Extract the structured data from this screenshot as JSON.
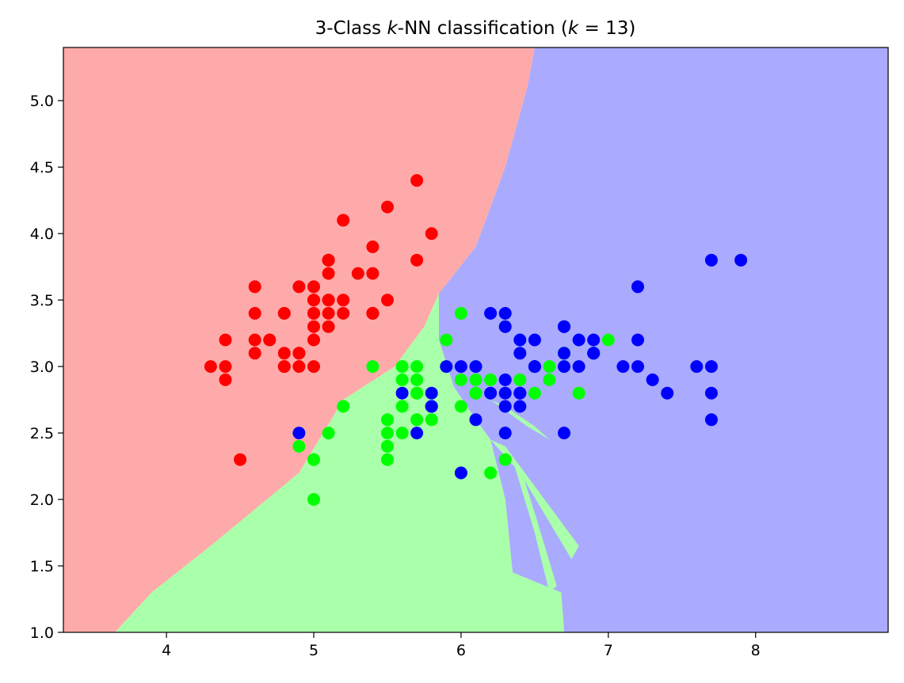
{
  "chart_data": {
    "type": "scatter",
    "title_parts": {
      "prefix": "3-Class ",
      "k1": "k",
      "mid": "-NN classification (",
      "k2": "k",
      "suffix": " = 13)"
    },
    "xlim": [
      3.3,
      8.9
    ],
    "ylim": [
      1.0,
      5.4
    ],
    "x_ticks": [
      4,
      5,
      6,
      7,
      8
    ],
    "x_tick_labels": [
      "4",
      "5",
      "6",
      "7",
      "8"
    ],
    "y_ticks": [
      1.0,
      1.5,
      2.0,
      2.5,
      3.0,
      3.5,
      4.0,
      4.5,
      5.0
    ],
    "y_tick_labels": [
      "1.0",
      "1.5",
      "2.0",
      "2.5",
      "3.0",
      "3.5",
      "4.0",
      "4.5",
      "5.0"
    ],
    "region_colors": {
      "red": "#ffaaaa",
      "green": "#aaffaa",
      "blue": "#aaaaff"
    },
    "point_colors": {
      "red": "#ff0000",
      "green": "#00ff00",
      "blue": "#0000ff"
    },
    "decision_regions": {
      "red": [
        [
          3.3,
          1.0
        ],
        [
          3.65,
          1.0
        ],
        [
          3.9,
          1.3
        ],
        [
          4.3,
          1.65
        ],
        [
          4.9,
          2.2
        ],
        [
          5.2,
          2.75
        ],
        [
          5.55,
          3.0
        ],
        [
          5.75,
          3.3
        ],
        [
          5.85,
          3.55
        ],
        [
          6.1,
          3.9
        ],
        [
          6.3,
          4.5
        ],
        [
          6.45,
          5.1
        ],
        [
          6.5,
          5.4
        ],
        [
          3.3,
          5.4
        ]
      ],
      "green": [
        [
          3.65,
          1.0
        ],
        [
          6.7,
          1.0
        ],
        [
          6.68,
          1.3
        ],
        [
          6.35,
          1.45
        ],
        [
          6.3,
          2.0
        ],
        [
          6.2,
          2.45
        ],
        [
          6.1,
          2.6
        ],
        [
          5.95,
          2.85
        ],
        [
          5.85,
          3.2
        ],
        [
          5.85,
          3.55
        ],
        [
          5.75,
          3.3
        ],
        [
          5.55,
          3.0
        ],
        [
          5.2,
          2.75
        ],
        [
          4.9,
          2.2
        ],
        [
          4.3,
          1.65
        ],
        [
          3.9,
          1.3
        ]
      ],
      "blue": [
        [
          6.7,
          1.0
        ],
        [
          8.9,
          1.0
        ],
        [
          8.9,
          5.4
        ],
        [
          6.5,
          5.4
        ],
        [
          6.45,
          5.1
        ],
        [
          6.3,
          4.5
        ],
        [
          6.1,
          3.9
        ],
        [
          5.85,
          3.55
        ],
        [
          5.85,
          3.2
        ],
        [
          5.95,
          2.85
        ],
        [
          6.1,
          2.6
        ],
        [
          6.2,
          2.45
        ],
        [
          6.3,
          2.0
        ],
        [
          6.35,
          1.45
        ],
        [
          6.68,
          1.3
        ]
      ],
      "green_islands": [
        [
          [
            6.2,
            2.75
          ],
          [
            6.45,
            2.55
          ],
          [
            6.6,
            2.45
          ],
          [
            6.5,
            2.55
          ],
          [
            6.3,
            2.7
          ]
        ],
        [
          [
            6.2,
            2.45
          ],
          [
            6.4,
            2.2
          ],
          [
            6.75,
            1.55
          ],
          [
            6.8,
            1.65
          ],
          [
            6.5,
            2.1
          ],
          [
            6.3,
            2.4
          ]
        ],
        [
          [
            6.35,
            2.3
          ],
          [
            6.5,
            1.75
          ],
          [
            6.6,
            1.3
          ],
          [
            6.65,
            1.35
          ],
          [
            6.5,
            1.9
          ],
          [
            6.4,
            2.25
          ]
        ]
      ]
    },
    "series": [
      {
        "color_key": "red",
        "points": [
          [
            5.1,
            3.5
          ],
          [
            4.9,
            3.0
          ],
          [
            4.7,
            3.2
          ],
          [
            4.6,
            3.1
          ],
          [
            5.0,
            3.6
          ],
          [
            5.4,
            3.4
          ],
          [
            4.6,
            3.4
          ],
          [
            5.0,
            3.4
          ],
          [
            4.4,
            2.9
          ],
          [
            4.9,
            3.1
          ],
          [
            5.4,
            3.7
          ],
          [
            4.8,
            3.4
          ],
          [
            4.8,
            3.0
          ],
          [
            4.3,
            3.0
          ],
          [
            5.8,
            4.0
          ],
          [
            5.7,
            4.4
          ],
          [
            5.4,
            3.9
          ],
          [
            5.1,
            3.5
          ],
          [
            5.7,
            3.8
          ],
          [
            5.1,
            3.8
          ],
          [
            5.4,
            3.4
          ],
          [
            5.1,
            3.7
          ],
          [
            4.6,
            3.6
          ],
          [
            5.1,
            3.3
          ],
          [
            4.8,
            3.4
          ],
          [
            5.0,
            3.0
          ],
          [
            5.0,
            3.4
          ],
          [
            5.2,
            3.5
          ],
          [
            5.2,
            3.4
          ],
          [
            4.7,
            3.2
          ],
          [
            4.8,
            3.1
          ],
          [
            5.4,
            3.4
          ],
          [
            5.2,
            4.1
          ],
          [
            5.5,
            4.2
          ],
          [
            4.9,
            3.1
          ],
          [
            5.0,
            3.2
          ],
          [
            5.5,
            3.5
          ],
          [
            4.9,
            3.6
          ],
          [
            4.4,
            3.0
          ],
          [
            5.1,
            3.4
          ],
          [
            5.0,
            3.5
          ],
          [
            4.5,
            2.3
          ],
          [
            4.4,
            3.2
          ],
          [
            5.0,
            3.5
          ],
          [
            5.1,
            3.8
          ],
          [
            4.8,
            3.0
          ],
          [
            5.1,
            3.8
          ],
          [
            4.6,
            3.2
          ],
          [
            5.3,
            3.7
          ],
          [
            5.0,
            3.3
          ]
        ]
      },
      {
        "color_key": "green",
        "points": [
          [
            7.0,
            3.2
          ],
          [
            6.4,
            3.2
          ],
          [
            6.9,
            3.1
          ],
          [
            5.5,
            2.3
          ],
          [
            6.5,
            2.8
          ],
          [
            5.7,
            2.8
          ],
          [
            6.3,
            3.3
          ],
          [
            4.9,
            2.4
          ],
          [
            6.6,
            2.9
          ],
          [
            5.2,
            2.7
          ],
          [
            5.0,
            2.0
          ],
          [
            5.9,
            3.0
          ],
          [
            6.0,
            2.2
          ],
          [
            6.1,
            2.9
          ],
          [
            5.6,
            2.9
          ],
          [
            6.7,
            3.1
          ],
          [
            5.6,
            3.0
          ],
          [
            5.8,
            2.7
          ],
          [
            6.2,
            2.2
          ],
          [
            5.6,
            2.5
          ],
          [
            5.9,
            3.2
          ],
          [
            6.1,
            2.8
          ],
          [
            6.3,
            2.5
          ],
          [
            6.1,
            2.8
          ],
          [
            6.4,
            2.9
          ],
          [
            6.6,
            3.0
          ],
          [
            6.8,
            2.8
          ],
          [
            6.7,
            3.0
          ],
          [
            6.0,
            2.9
          ],
          [
            5.7,
            2.6
          ],
          [
            5.5,
            2.4
          ],
          [
            5.5,
            2.4
          ],
          [
            5.8,
            2.7
          ],
          [
            6.0,
            2.7
          ],
          [
            5.4,
            3.0
          ],
          [
            6.0,
            3.4
          ],
          [
            6.7,
            3.1
          ],
          [
            6.3,
            2.3
          ],
          [
            5.6,
            3.0
          ],
          [
            5.5,
            2.5
          ],
          [
            5.5,
            2.6
          ],
          [
            6.1,
            3.0
          ],
          [
            5.8,
            2.6
          ],
          [
            5.0,
            2.3
          ],
          [
            5.6,
            2.7
          ],
          [
            5.7,
            3.0
          ],
          [
            5.7,
            2.9
          ],
          [
            6.2,
            2.9
          ],
          [
            5.1,
            2.5
          ],
          [
            5.7,
            2.8
          ]
        ]
      },
      {
        "color_key": "blue",
        "points": [
          [
            6.3,
            3.3
          ],
          [
            5.8,
            2.7
          ],
          [
            7.1,
            3.0
          ],
          [
            6.3,
            2.9
          ],
          [
            6.5,
            3.0
          ],
          [
            7.6,
            3.0
          ],
          [
            4.9,
            2.5
          ],
          [
            7.3,
            2.9
          ],
          [
            6.7,
            2.5
          ],
          [
            7.2,
            3.6
          ],
          [
            6.5,
            3.2
          ],
          [
            6.4,
            2.7
          ],
          [
            6.8,
            3.0
          ],
          [
            5.7,
            2.5
          ],
          [
            5.8,
            2.8
          ],
          [
            6.4,
            3.2
          ],
          [
            6.5,
            3.0
          ],
          [
            7.7,
            3.8
          ],
          [
            7.7,
            2.6
          ],
          [
            6.0,
            2.2
          ],
          [
            6.9,
            3.2
          ],
          [
            5.6,
            2.8
          ],
          [
            7.7,
            2.8
          ],
          [
            6.3,
            2.7
          ],
          [
            6.7,
            3.3
          ],
          [
            7.2,
            3.2
          ],
          [
            6.2,
            2.8
          ],
          [
            6.1,
            3.0
          ],
          [
            6.4,
            2.8
          ],
          [
            7.2,
            3.0
          ],
          [
            7.4,
            2.8
          ],
          [
            7.9,
            3.8
          ],
          [
            6.4,
            2.8
          ],
          [
            6.3,
            2.8
          ],
          [
            6.1,
            2.6
          ],
          [
            7.7,
            3.0
          ],
          [
            6.3,
            3.4
          ],
          [
            6.4,
            3.1
          ],
          [
            6.0,
            3.0
          ],
          [
            6.9,
            3.1
          ],
          [
            6.7,
            3.1
          ],
          [
            6.9,
            3.1
          ],
          [
            5.8,
            2.7
          ],
          [
            6.8,
            3.2
          ],
          [
            6.7,
            3.3
          ],
          [
            6.7,
            3.0
          ],
          [
            6.3,
            2.5
          ],
          [
            6.5,
            3.0
          ],
          [
            6.2,
            3.4
          ],
          [
            5.9,
            3.0
          ]
        ]
      }
    ]
  }
}
